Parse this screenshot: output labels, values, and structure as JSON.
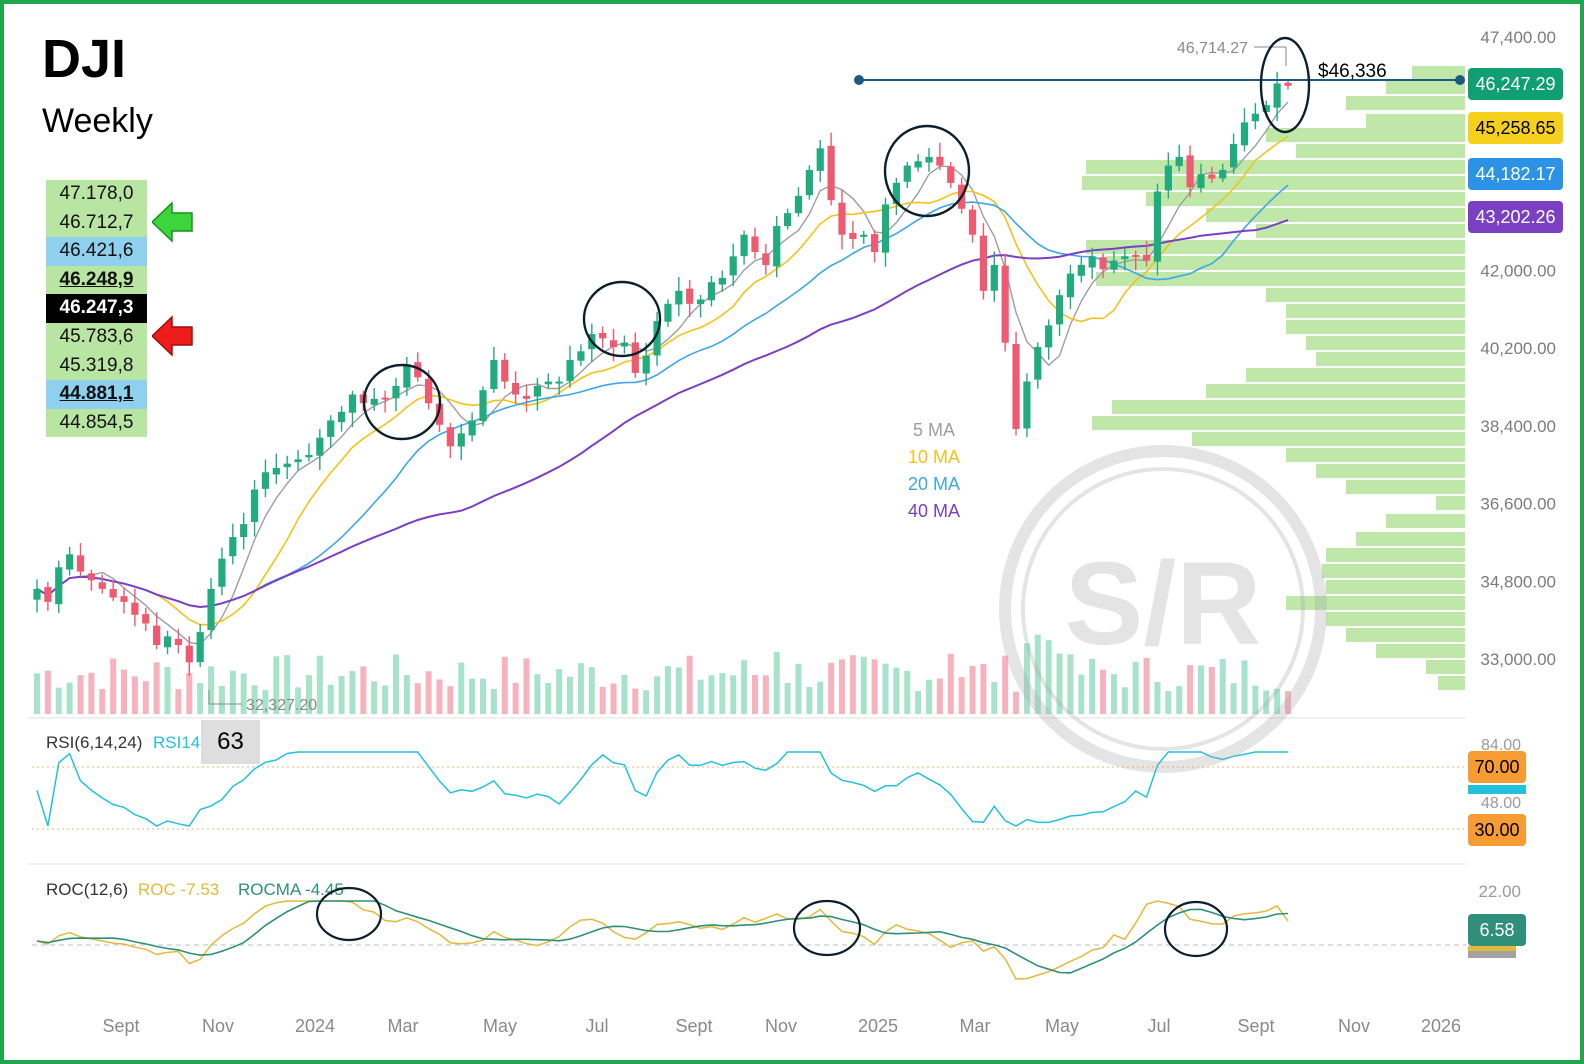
{
  "title": "DJI",
  "subtitle": "Weekly",
  "levels": [
    {
      "value": "47.178,0",
      "style": "green"
    },
    {
      "value": "46.712,7",
      "style": "green",
      "arrow": "up-green"
    },
    {
      "value": "46.421,6",
      "style": "blue"
    },
    {
      "value": "46.248,9",
      "style": "green-bold-underline"
    },
    {
      "value": "46.247,3",
      "style": "black"
    },
    {
      "value": "45.783,6",
      "style": "green",
      "arrow": "down-red"
    },
    {
      "value": "45.319,8",
      "style": "green"
    },
    {
      "value": "44.881,1",
      "style": "blue-bold-underline"
    },
    {
      "value": "44.854,5",
      "style": "green"
    }
  ],
  "icons": {
    "up_arrow": "up-arrow-icon",
    "down_arrow": "down-arrow-icon"
  },
  "colors": {
    "up": "#22ab7f",
    "down": "#ee5a6f",
    "ma5": "#9e9e9e",
    "ma10": "#f5c21b",
    "ma20": "#3ea6ea",
    "ma40": "#7b3fc4",
    "border": "#1fa84b"
  },
  "price_axis": {
    "ticks": [
      "47,400.00",
      "42,000.00",
      "40,200.00",
      "38,400.00",
      "36,600.00",
      "34,800.00",
      "33,000.00"
    ],
    "badges": [
      {
        "value": "46,247.29",
        "bg": "#0f9f73",
        "fg": "#ffffff"
      },
      {
        "value": "45,258.65",
        "bg": "#f5d01c",
        "fg": "#000000"
      },
      {
        "value": "44,182.17",
        "bg": "#2b92e6",
        "fg": "#ffffff"
      },
      {
        "value": "43,202.26",
        "bg": "#7b3fc4",
        "fg": "#ffffff"
      }
    ]
  },
  "annotations": {
    "high_label": "46,714.27",
    "resistance_label": "$46,336",
    "low_label": "32,327.20"
  },
  "ma_legend": [
    "5 MA",
    "10 MA",
    "20 MA",
    "40 MA"
  ],
  "rsi": {
    "label": "RSI(6,14,24)",
    "series_label": "RSI14",
    "value": "63",
    "ticks": [
      "84.00",
      "48.00"
    ],
    "badges": [
      "70.00",
      "30.00"
    ]
  },
  "roc": {
    "label": "ROC(12,6)",
    "roc_label": "ROC -7.53",
    "rocma_label": "ROCMA -4.45",
    "ticks": [
      "22.00"
    ],
    "badge": "6.58"
  },
  "x_labels": [
    "Sept",
    "Nov",
    "2024",
    "Mar",
    "May",
    "Jul",
    "Sept",
    "Nov",
    "2025",
    "Mar",
    "May",
    "Jul",
    "Sept",
    "Nov",
    "2026"
  ],
  "watermark": "S/R",
  "chart_data": {
    "type": "candlestick",
    "title": "DJI",
    "subtitle": "Weekly",
    "y_range": [
      32000,
      47700
    ],
    "x_labels": [
      "Sept",
      "Nov",
      "2024",
      "Mar",
      "May",
      "Jul",
      "Sept",
      "Nov",
      "2025",
      "Mar",
      "May",
      "Jul",
      "Sept",
      "Nov",
      "2026"
    ],
    "series": [
      {
        "name": "5 MA"
      },
      {
        "name": "10 MA"
      },
      {
        "name": "20 MA"
      },
      {
        "name": "40 MA"
      }
    ],
    "closes": [
      34600,
      34300,
      35100,
      35400,
      35000,
      34800,
      34600,
      34400,
      34300,
      34000,
      33800,
      33300,
      33500,
      33300,
      32900,
      33600,
      34600,
      35300,
      35800,
      36100,
      36900,
      37300,
      37400,
      37500,
      37600,
      37700,
      38100,
      38500,
      38700,
      39100,
      38900,
      39000,
      39000,
      39300,
      39800,
      39500,
      38900,
      38400,
      37900,
      38200,
      38500,
      39200,
      39900,
      39400,
      39100,
      39000,
      39300,
      39400,
      39400,
      39900,
      40100,
      40500,
      40400,
      40200,
      40300,
      39600,
      40000,
      40800,
      41200,
      41500,
      41200,
      41300,
      41700,
      41800,
      42300,
      42800,
      42400,
      42100,
      43000,
      43300,
      43700,
      44300,
      44800,
      43600,
      42800,
      42700,
      42800,
      42400,
      43500,
      44000,
      44400,
      44500,
      44600,
      44400,
      44000,
      43400,
      42800,
      41500,
      42100,
      40300,
      38300,
      39400,
      40200,
      40700,
      41400,
      41900,
      42100,
      42300,
      42000,
      42200,
      42300,
      42300,
      42200,
      43800,
      44400,
      44600,
      43900,
      44200,
      44100,
      44300,
      44900,
      45400,
      45600,
      45800,
      46300,
      46247
    ]
  }
}
